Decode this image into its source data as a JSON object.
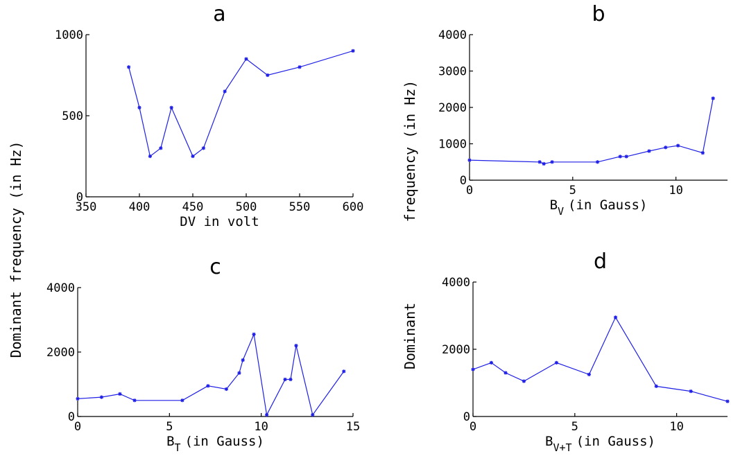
{
  "shared_ylabel": {
    "left": "Dominant frequency (in Hz)",
    "right_top": "frequency (in Hz)",
    "right_bottom": "Dominant"
  },
  "chart_data": [
    {
      "id": "a",
      "type": "line",
      "title": "a",
      "xlabel": "DV in volt",
      "xlim": [
        350,
        600
      ],
      "ylim": [
        0,
        1000
      ],
      "xticks": [
        "350",
        "400",
        "450",
        "500",
        "550",
        "600"
      ],
      "yticks": [
        "0",
        "500",
        "1000"
      ],
      "color": "#1f1fe6",
      "x": [
        390,
        400,
        410,
        420,
        430,
        450,
        460,
        480,
        500,
        520,
        550,
        600
      ],
      "y": [
        800,
        550,
        250,
        300,
        550,
        250,
        300,
        650,
        850,
        750,
        800,
        900
      ]
    },
    {
      "id": "b",
      "type": "line",
      "title": "b",
      "xlabel": "B",
      "xlabel_sub": "V",
      "xlabel_rest": "(in Gauss)",
      "xlim": [
        0,
        12.5
      ],
      "ylim": [
        0,
        4000
      ],
      "xticks": [
        "0",
        "5",
        "10"
      ],
      "yticks": [
        "0",
        "1000",
        "2000",
        "3000",
        "4000"
      ],
      "color": "#1f1fe6",
      "x": [
        0,
        3.4,
        3.6,
        4.0,
        6.2,
        7.3,
        7.6,
        8.7,
        9.5,
        10.1,
        11.3,
        11.8
      ],
      "y": [
        550,
        500,
        450,
        500,
        500,
        650,
        650,
        800,
        900,
        950,
        750,
        2250
      ]
    },
    {
      "id": "c",
      "type": "line",
      "title": "c",
      "xlabel": "B",
      "xlabel_sub": "T",
      "xlabel_rest": "(in Gauss)",
      "xlim": [
        0,
        15
      ],
      "ylim": [
        0,
        4000
      ],
      "xticks": [
        "0",
        "5",
        "10",
        "15"
      ],
      "yticks": [
        "0",
        "2000",
        "4000"
      ],
      "color": "#1f1fe6",
      "x": [
        0,
        1.3,
        2.3,
        3.1,
        5.7,
        7.1,
        8.1,
        8.8,
        9.0,
        9.6,
        10.3,
        11.3,
        11.6,
        11.9,
        12.8,
        14.5
      ],
      "y": [
        550,
        600,
        700,
        500,
        500,
        950,
        850,
        1350,
        1750,
        2550,
        50,
        1150,
        1150,
        2200,
        50,
        1400
      ]
    },
    {
      "id": "d",
      "type": "line",
      "title": "d",
      "xlabel": "B",
      "xlabel_sub": "V+T",
      "xlabel_rest": "(in Gauss)",
      "xlim": [
        0,
        12.5
      ],
      "ylim": [
        0,
        4000
      ],
      "xticks": [
        "0",
        "5",
        "10"
      ],
      "yticks": [
        "0",
        "2000",
        "4000"
      ],
      "color": "#1f1fe6",
      "x": [
        0,
        0.9,
        1.6,
        2.5,
        4.1,
        5.7,
        7.0,
        9.0,
        10.7,
        12.5
      ],
      "y": [
        1400,
        1600,
        1300,
        1050,
        1600,
        1250,
        2950,
        900,
        750,
        450
      ]
    }
  ]
}
